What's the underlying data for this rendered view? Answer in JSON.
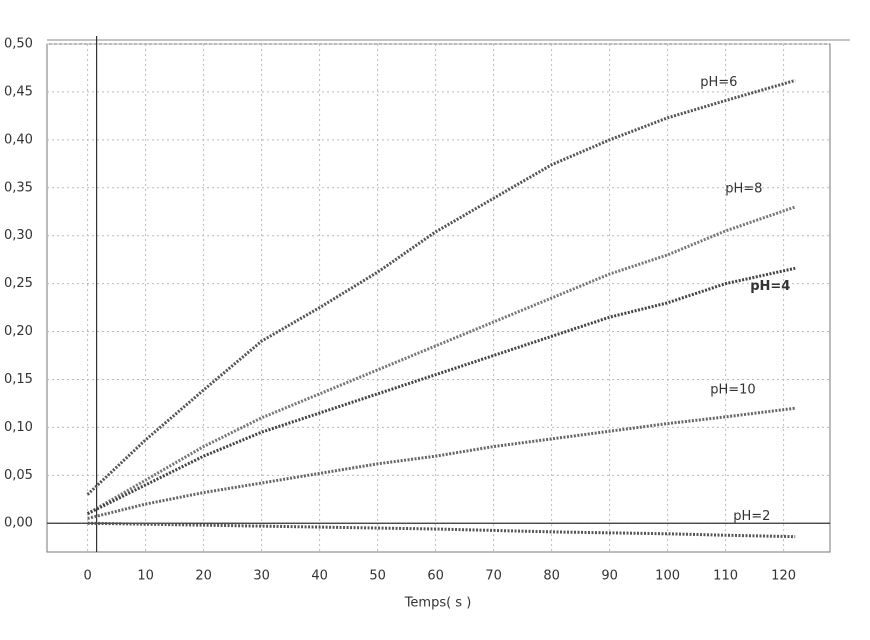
{
  "chart_data": {
    "type": "line",
    "x_label": "Temps( s )",
    "x": [
      0,
      10,
      20,
      30,
      40,
      50,
      60,
      70,
      80,
      90,
      100,
      110,
      122
    ],
    "series": [
      {
        "name": "pH=6",
        "color": "#555555",
        "values": [
          0.03,
          0.087,
          0.139,
          0.19,
          0.225,
          0.262,
          0.304,
          0.339,
          0.374,
          0.4,
          0.423,
          0.441,
          0.462
        ]
      },
      {
        "name": "pH=8",
        "color": "#777777",
        "values": [
          0.01,
          0.045,
          0.08,
          0.11,
          0.135,
          0.16,
          0.185,
          0.21,
          0.235,
          0.26,
          0.28,
          0.305,
          0.33
        ]
      },
      {
        "name": "pH=4",
        "color": "#444444",
        "values": [
          0.01,
          0.04,
          0.07,
          0.095,
          0.115,
          0.135,
          0.155,
          0.175,
          0.195,
          0.215,
          0.23,
          0.25,
          0.266
        ]
      },
      {
        "name": "pH=10",
        "color": "#666666",
        "values": [
          0.005,
          0.02,
          0.032,
          0.042,
          0.052,
          0.062,
          0.07,
          0.08,
          0.088,
          0.096,
          0.104,
          0.111,
          0.12
        ]
      },
      {
        "name": "pH=2",
        "color": "#555555",
        "values": [
          0.0,
          -0.001,
          -0.002,
          -0.003,
          -0.004,
          -0.005,
          -0.006,
          -0.0075,
          -0.009,
          -0.01,
          -0.011,
          -0.0125,
          -0.014
        ]
      }
    ],
    "xlim": [
      -7,
      128
    ],
    "ylim": [
      -0.03,
      0.5
    ],
    "xticks": [
      0,
      10,
      20,
      30,
      40,
      50,
      60,
      70,
      80,
      90,
      100,
      110,
      120
    ],
    "yticks": [
      {
        "value": 0,
        "label": "0,00"
      },
      {
        "value": 0.05,
        "label": "0,05"
      },
      {
        "value": 0.1,
        "label": "0,10"
      },
      {
        "value": 0.15,
        "label": "0,15"
      },
      {
        "value": 0.2,
        "label": "0,20"
      },
      {
        "value": 0.25,
        "label": "0,25"
      },
      {
        "value": 0.3,
        "label": "0,30"
      },
      {
        "value": 0.35,
        "label": "0,35"
      },
      {
        "value": 0.4,
        "label": "0,40"
      },
      {
        "value": 0.45,
        "label": "0,45"
      },
      {
        "value": 0.5,
        "label": "0,50"
      }
    ],
    "grid": true
  }
}
